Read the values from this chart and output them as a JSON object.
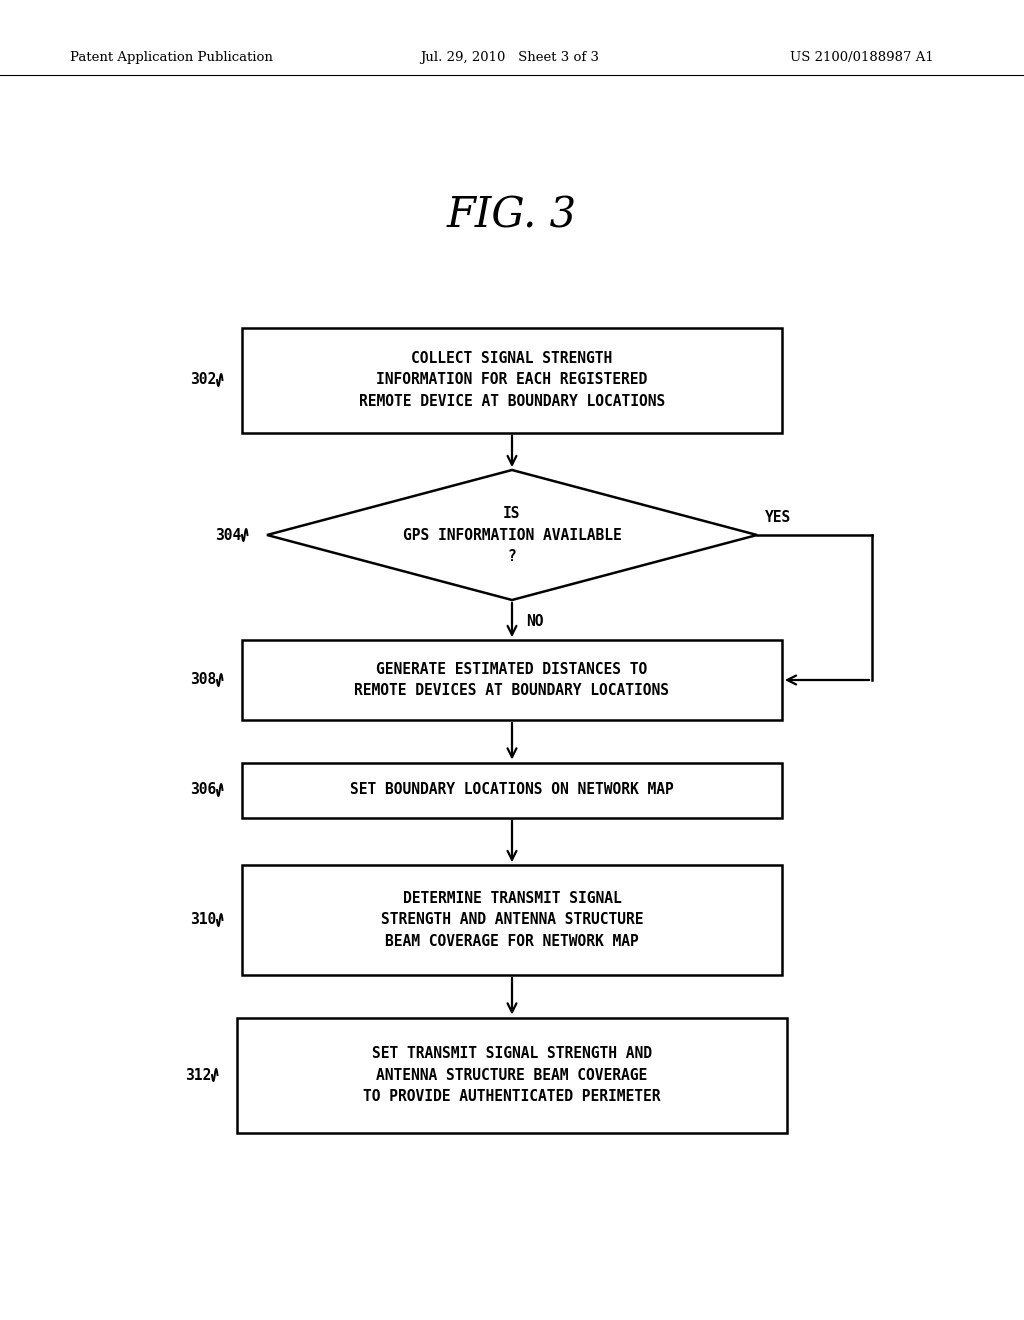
{
  "background_color": "#ffffff",
  "header_left": "Patent Application Publication",
  "header_center": "Jul. 29, 2010   Sheet 3 of 3",
  "header_right": "US 2100/0188987 A1",
  "fig_title": "FIG. 3",
  "b302_text": "COLLECT SIGNAL STRENGTH\nINFORMATION FOR EACH REGISTERED\nREMOTE DEVICE AT BOUNDARY LOCATIONS",
  "b304_text": "IS\nGPS INFORMATION AVAILABLE\n?",
  "b308_text": "GENERATE ESTIMATED DISTANCES TO\nREMOTE DEVICES AT BOUNDARY LOCATIONS",
  "b306_text": "SET BOUNDARY LOCATIONS ON NETWORK MAP",
  "b310_text": "DETERMINE TRANSMIT SIGNAL\nSTRENGTH AND ANTENNA STRUCTURE\nBEAM COVERAGE FOR NETWORK MAP",
  "b312_text": "SET TRANSMIT SIGNAL STRENGTH AND\nANTENNA STRUCTURE BEAM COVERAGE\nTO PROVIDE AUTHENTICATED PERIMETER",
  "label302": "302",
  "label304": "304",
  "label308": "308",
  "label306": "306",
  "label310": "310",
  "label312": "312"
}
